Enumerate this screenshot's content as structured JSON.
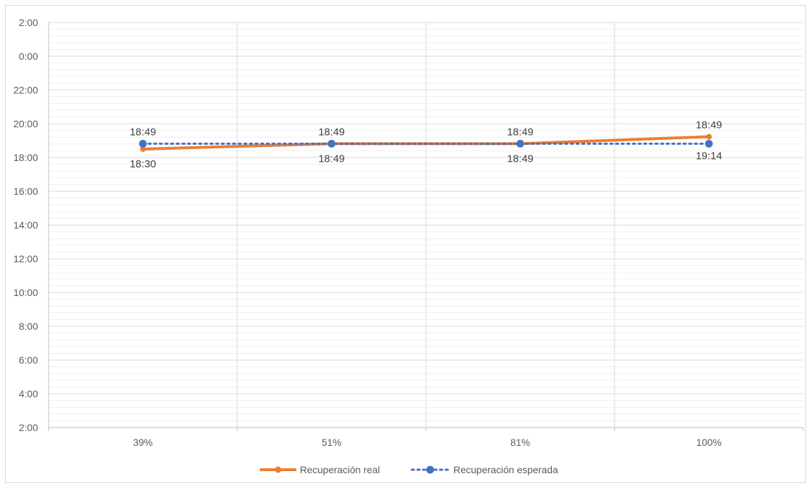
{
  "chart_data": {
    "type": "line",
    "title": "",
    "xlabel": "",
    "ylabel": "",
    "categories": [
      "39%",
      "51%",
      "81%",
      "100%"
    ],
    "y_tick_labels": [
      "2:00",
      "4:00",
      "6:00",
      "8:00",
      "10:00",
      "12:00",
      "14:00",
      "16:00",
      "18:00",
      "20:00",
      "22:00",
      "0:00",
      "2:00"
    ],
    "ylim": [
      "2:00",
      "2:00 (+1 day)"
    ],
    "grid": {
      "major_horizontal": true,
      "minor_horizontal": true,
      "vertical": true
    },
    "legend_position": "bottom",
    "series": [
      {
        "name": "Recuperación real",
        "color": "#ed7d31",
        "style": "solid",
        "marker": "cross",
        "values": [
          "18:30",
          "18:49",
          "18:49",
          "19:14"
        ],
        "data_labels": [
          "18:30",
          "18:49",
          "18:49",
          "19:14"
        ]
      },
      {
        "name": "Recuperación esperada",
        "color": "#4472c4",
        "style": "dotted",
        "marker": "circle",
        "values": [
          "18:49",
          "18:49",
          "18:49",
          "18:49"
        ],
        "data_labels": [
          "18:49",
          "18:49",
          "18:49",
          "18:49"
        ]
      }
    ]
  }
}
